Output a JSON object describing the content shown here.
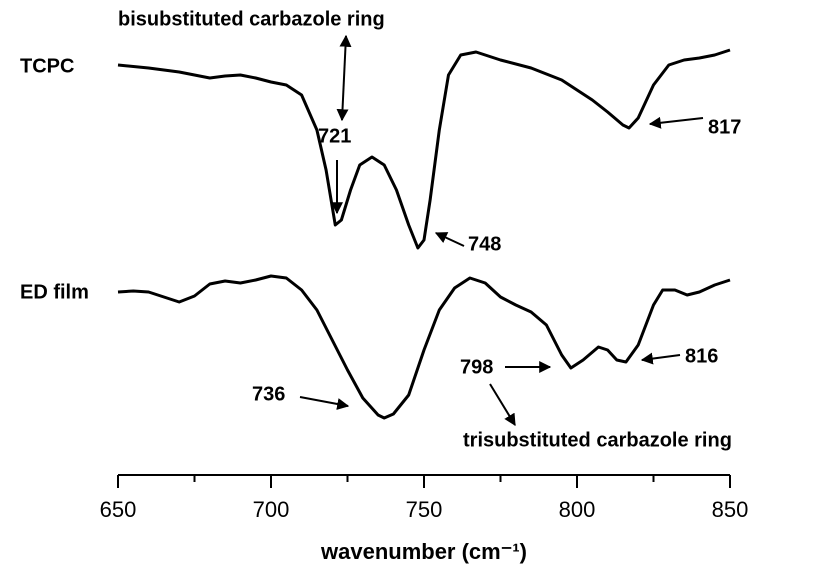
{
  "chart_data": {
    "type": "line",
    "x_label": "wavenumber (cm⁻¹)",
    "xlim": [
      650,
      850
    ],
    "xticks": [
      650,
      700,
      750,
      800,
      850
    ],
    "xminorticks": [
      675,
      725,
      775,
      825
    ],
    "ylim": [
      0,
      475
    ],
    "series": [
      {
        "name": "TCPC",
        "color": "#000000",
        "x": [
          650,
          660,
          670,
          680,
          685,
          690,
          695,
          700,
          705,
          710,
          715,
          718,
          721,
          723,
          726,
          729,
          733,
          737,
          741,
          745,
          748,
          750,
          752,
          755,
          758,
          762,
          767,
          775,
          785,
          795,
          800,
          805,
          810,
          815,
          817,
          820,
          825,
          830,
          835,
          840,
          845,
          850
        ],
        "values": [
          410,
          407,
          403,
          397,
          399,
          400,
          397,
          393,
          390,
          380,
          345,
          305,
          250,
          255,
          285,
          310,
          318,
          310,
          285,
          250,
          227,
          235,
          275,
          345,
          400,
          420,
          423,
          415,
          407,
          395,
          385,
          375,
          363,
          350,
          347,
          357,
          390,
          410,
          415,
          417,
          420,
          425
        ]
      },
      {
        "name": "ED film",
        "color": "#000000",
        "x": [
          650,
          655,
          660,
          665,
          670,
          675,
          680,
          685,
          690,
          695,
          700,
          705,
          710,
          715,
          720,
          725,
          730,
          735,
          737,
          740,
          745,
          750,
          755,
          760,
          765,
          770,
          775,
          780,
          785,
          790,
          795,
          798,
          802,
          807,
          810,
          813,
          816,
          820,
          825,
          828,
          832,
          836,
          840,
          845,
          850
        ],
        "values": [
          183,
          184,
          183,
          178,
          173,
          179,
          191,
          194,
          192,
          195,
          199,
          197,
          185,
          165,
          135,
          105,
          77,
          60,
          57,
          61,
          80,
          125,
          165,
          187,
          197,
          192,
          178,
          170,
          163,
          150,
          120,
          107,
          115,
          128,
          125,
          115,
          113,
          130,
          170,
          185,
          185,
          180,
          183,
          190,
          195
        ]
      }
    ],
    "annotations": [
      "bisubstituted carbazole ring",
      "721",
      "748",
      "817",
      "798",
      "816",
      "736",
      "trisubstituted carbazole ring"
    ]
  }
}
